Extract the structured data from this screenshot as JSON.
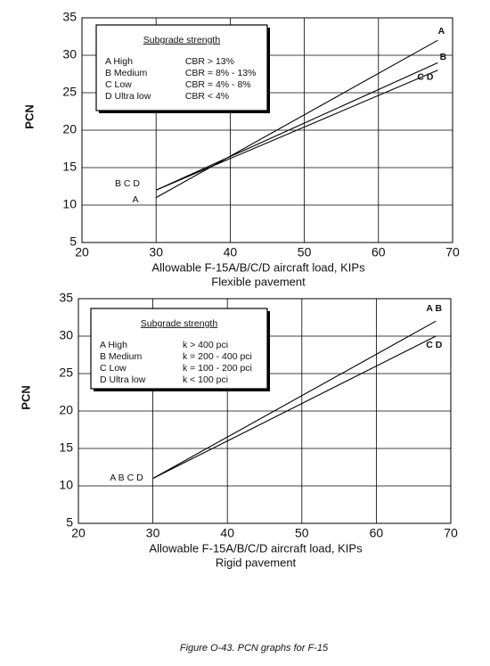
{
  "chart_data": [
    {
      "type": "line",
      "ylabel": "PCN",
      "xlabel": "Allowable F-15A/B/C/D aircraft load, KIPs",
      "subtitle": "Flexible pavement",
      "xlim": [
        20,
        70
      ],
      "xticks": [
        20,
        30,
        40,
        50,
        60,
        70
      ],
      "ylim": [
        5,
        35
      ],
      "yticks": [
        5,
        10,
        15,
        20,
        25,
        30,
        35
      ],
      "grid": true,
      "series": [
        {
          "name": "A",
          "color": "#000000",
          "x": [
            30,
            68
          ],
          "values": [
            11,
            32
          ]
        },
        {
          "name": "B",
          "color": "#000000",
          "x": [
            30,
            68
          ],
          "values": [
            12,
            29
          ]
        },
        {
          "name": "C D",
          "color": "#000000",
          "x": [
            30,
            68
          ],
          "values": [
            12,
            28
          ]
        }
      ],
      "annotations": [
        "B C D",
        "A"
      ],
      "legend_table": {
        "title": "Subgrade strength",
        "rows": [
          [
            "A  High",
            "CBR > 13%"
          ],
          [
            "B  Medium",
            "CBR = 8% - 13%"
          ],
          [
            "C  Low",
            "CBR = 4% - 8%"
          ],
          [
            "D  Ultra low",
            "CBR < 4%"
          ]
        ]
      }
    },
    {
      "type": "line",
      "ylabel": "PCN",
      "xlabel": "Allowable F-15A/B/C/D aircraft load, KIPs",
      "subtitle": "Rigid pavement",
      "xlim": [
        20,
        70
      ],
      "xticks": [
        20,
        30,
        40,
        50,
        60,
        70
      ],
      "ylim": [
        5,
        35
      ],
      "yticks": [
        5,
        10,
        15,
        20,
        25,
        30,
        35
      ],
      "grid": true,
      "series": [
        {
          "name": "A B",
          "color": "#000000",
          "x": [
            30,
            68
          ],
          "values": [
            11,
            32
          ]
        },
        {
          "name": "C D",
          "color": "#000000",
          "x": [
            30,
            68
          ],
          "values": [
            11,
            30
          ]
        }
      ],
      "annotations": [
        "A B C D"
      ],
      "legend_table": {
        "title": "Subgrade strength",
        "rows": [
          [
            "A  High",
            "k > 400 pci"
          ],
          [
            "B  Medium",
            "k = 200 - 400 pci"
          ],
          [
            "C  Low",
            "k = 100 - 200 pci"
          ],
          [
            "D  Ultra low",
            "k < 100 pci"
          ]
        ]
      }
    }
  ],
  "caption": "Figure O-43.  PCN graphs for F-15"
}
